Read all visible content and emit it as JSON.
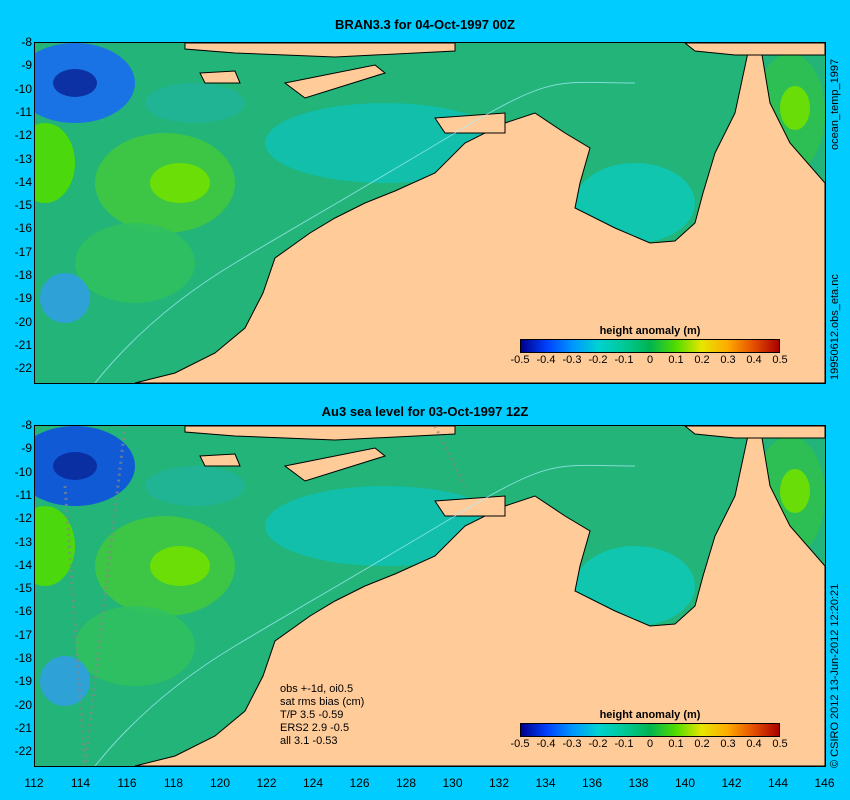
{
  "top_panel": {
    "title": "BRAN3.3 for 04-Oct-1997 00Z",
    "side_label_upper": "ocean_temp_1997",
    "side_label_lower": "19950612.obs_eta.nc"
  },
  "bottom_panel": {
    "title": "Au3 sea level  for 03-Oct-1997 12Z",
    "side_label": "© CSIRO 2012  13-Jun-2012 12:20:21",
    "stats": [
      "obs +-1d, oi0.5",
      "sat rms bias (cm)",
      "T/P  3.5 -0.59",
      "ERS2 2.9 -0.5",
      "all 3.1 -0.53"
    ]
  },
  "axes": {
    "y_ticks": [
      "-8",
      "-9",
      "-10",
      "-11",
      "-12",
      "-13",
      "-14",
      "-15",
      "-16",
      "-17",
      "-18",
      "-19",
      "-20",
      "-21",
      "-22"
    ],
    "x_ticks": [
      "112",
      "114",
      "116",
      "118",
      "120",
      "122",
      "124",
      "126",
      "128",
      "130",
      "132",
      "134",
      "136",
      "138",
      "140",
      "142",
      "144",
      "146"
    ]
  },
  "colorbar": {
    "title": "height anomaly (m)",
    "labels": [
      "-0.5",
      "-0.4",
      "-0.3",
      "-0.2",
      "-0.1",
      "0",
      "0.1",
      "0.2",
      "0.3",
      "0.4",
      "0.5"
    ],
    "colors": [
      "#00008b",
      "#0040ff",
      "#0096ff",
      "#00d2d2",
      "#00c896",
      "#00b450",
      "#50dc00",
      "#e6e600",
      "#ffaa00",
      "#e65000",
      "#aa0000"
    ]
  },
  "colors": {
    "background": "#00ccff",
    "land": "#ffcc99",
    "ocean_base": "#22b478"
  }
}
